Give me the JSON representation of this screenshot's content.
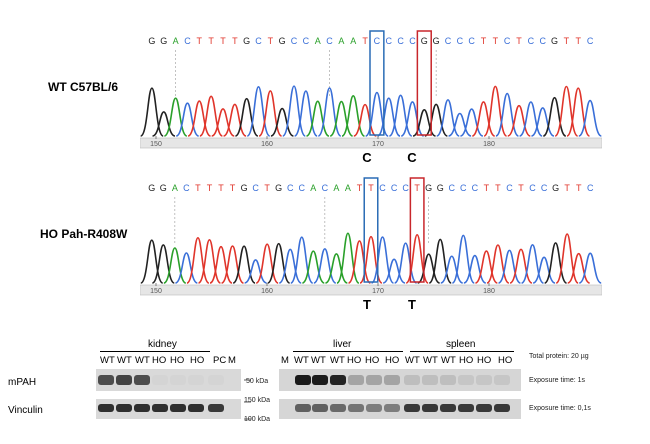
{
  "chromatograms": [
    {
      "sample_label": "WT C57BL/6",
      "sequence": [
        "G",
        "G",
        "A",
        "C",
        "T",
        "T",
        "T",
        "T",
        "G",
        "C",
        "T",
        "G",
        "C",
        "C",
        "A",
        "C",
        "A",
        "A",
        "T",
        "C",
        "C",
        "C",
        "C",
        "G",
        "G",
        "C",
        "C",
        "C",
        "T",
        "T",
        "C",
        "T",
        "C",
        "C",
        "G",
        "T",
        "T",
        "C"
      ],
      "axis_ticks": [
        "150",
        "160",
        "170",
        "180"
      ],
      "callouts": [
        "C",
        "C"
      ]
    },
    {
      "sample_label": "HO Pah-R408W",
      "sequence": [
        "G",
        "G",
        "A",
        "C",
        "T",
        "T",
        "T",
        "T",
        "G",
        "C",
        "T",
        "G",
        "C",
        "C",
        "A",
        "C",
        "A",
        "A",
        "T",
        "T",
        "C",
        "C",
        "C",
        "T",
        "G",
        "G",
        "C",
        "C",
        "C",
        "T",
        "T",
        "C",
        "T",
        "C",
        "C",
        "G",
        "T",
        "T",
        "C"
      ],
      "axis_ticks": [
        "150",
        "160",
        "170",
        "180"
      ],
      "callouts": [
        "T",
        "T"
      ]
    }
  ],
  "base_colors": {
    "A": "#2aa02a",
    "C": "#3a6fd8",
    "G": "#222222",
    "T": "#e0352b"
  },
  "box_colors": {
    "blue": "#2a6cb5",
    "red": "#c8262b"
  },
  "western_blot": {
    "groups": [
      "kidney",
      "liver",
      "spleen"
    ],
    "lanes_left": [
      "WT",
      "WT",
      "WT",
      "HO",
      "HO",
      "HO",
      "PC",
      "M"
    ],
    "lanes_right": [
      "M",
      "WT",
      "WT",
      "WT",
      "HO",
      "HO",
      "HO",
      "WT",
      "WT",
      "WT",
      "HO",
      "HO",
      "HO"
    ],
    "rows": [
      "mPAH",
      "Vinculin"
    ],
    "markers": [
      "50 kDa",
      "150 kDa",
      "100 kDa"
    ],
    "notes": [
      "Total protein: 20 µg",
      "Exposure time: 1s",
      "Exposure time: 0,1s"
    ],
    "mpah_intensity": [
      0.7,
      0.75,
      0.7,
      0.02,
      0.02,
      0.02,
      0.02,
      0.0,
      0.0,
      0.95,
      0.95,
      0.9,
      0.25,
      0.25,
      0.25,
      0.12,
      0.12,
      0.12,
      0.08,
      0.08,
      0.08
    ],
    "vinculin_intensity": [
      0.85,
      0.85,
      0.85,
      0.85,
      0.85,
      0.85,
      0.8,
      0.0,
      0.0,
      0.6,
      0.6,
      0.55,
      0.5,
      0.45,
      0.45,
      0.8,
      0.8,
      0.8,
      0.8,
      0.8,
      0.8
    ]
  }
}
